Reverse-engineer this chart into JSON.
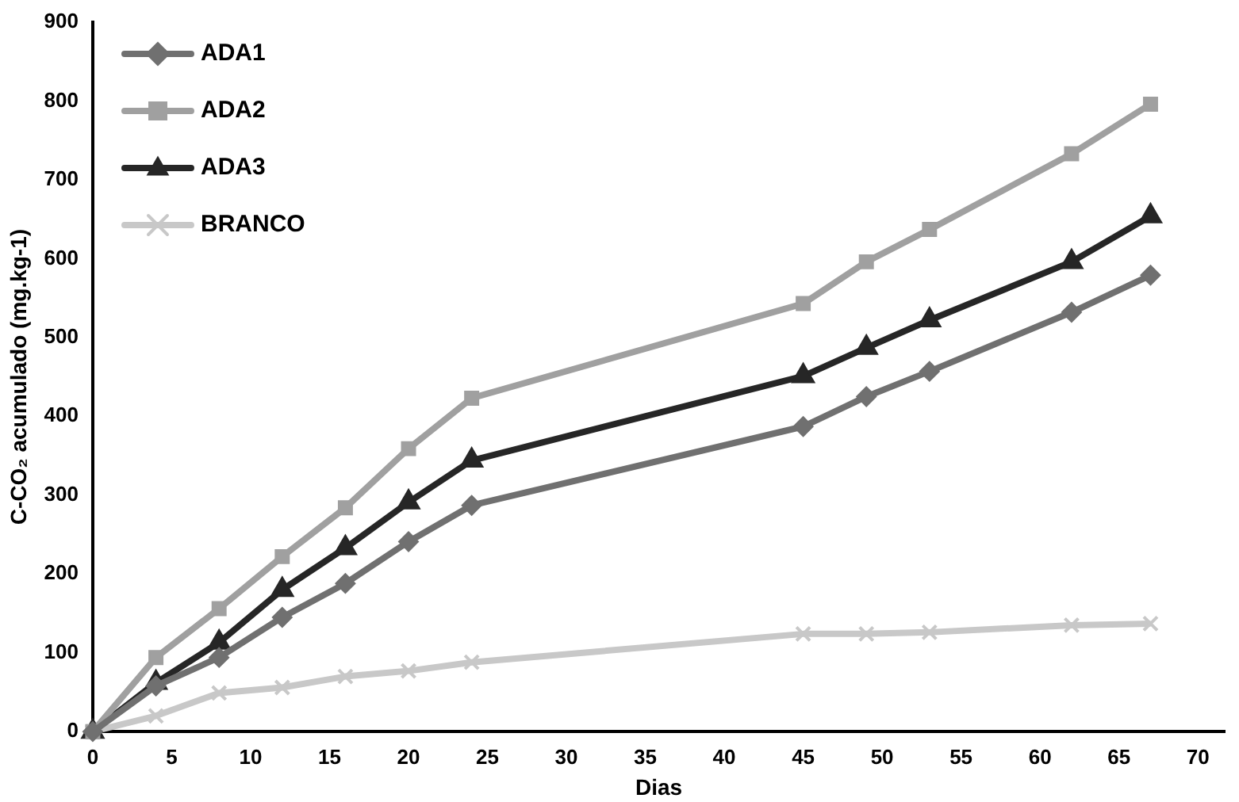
{
  "chart_data": {
    "type": "line",
    "xlabel": "Dias",
    "ylabel": "C-CO₂ acumulado (mg.kg-1)",
    "x": [
      0,
      4,
      8,
      12,
      16,
      20,
      24,
      45,
      49,
      53,
      62,
      67
    ],
    "xlim": [
      0,
      71.7
    ],
    "xticks": [
      0,
      5,
      10,
      15,
      20,
      25,
      30,
      35,
      40,
      45,
      50,
      55,
      60,
      65,
      70
    ],
    "ylim": [
      0,
      900
    ],
    "yticks": [
      0,
      100,
      200,
      300,
      400,
      500,
      600,
      700,
      800,
      900
    ],
    "grid": false,
    "legend": "top left",
    "series": [
      {
        "name": "ADA1",
        "color": "#707070",
        "marker": "diamond",
        "values": [
          0,
          58,
          94,
          145,
          188,
          241,
          287,
          387,
          425,
          457,
          532,
          579
        ]
      },
      {
        "name": "ADA2",
        "color": "#a0a0a0",
        "marker": "square",
        "values": [
          0,
          94,
          156,
          222,
          284,
          359,
          423,
          543,
          596,
          637,
          733,
          796
        ]
      },
      {
        "name": "ADA3",
        "color": "#262626",
        "marker": "triangle",
        "values": [
          0,
          62,
          113,
          180,
          233,
          291,
          344,
          451,
          487,
          522,
          596,
          654
        ]
      },
      {
        "name": "BRANCO",
        "color": "#c8c8c8",
        "marker": "cross",
        "values": [
          0,
          20,
          49,
          56,
          70,
          77,
          88,
          124,
          124,
          126,
          135,
          137
        ]
      }
    ]
  }
}
